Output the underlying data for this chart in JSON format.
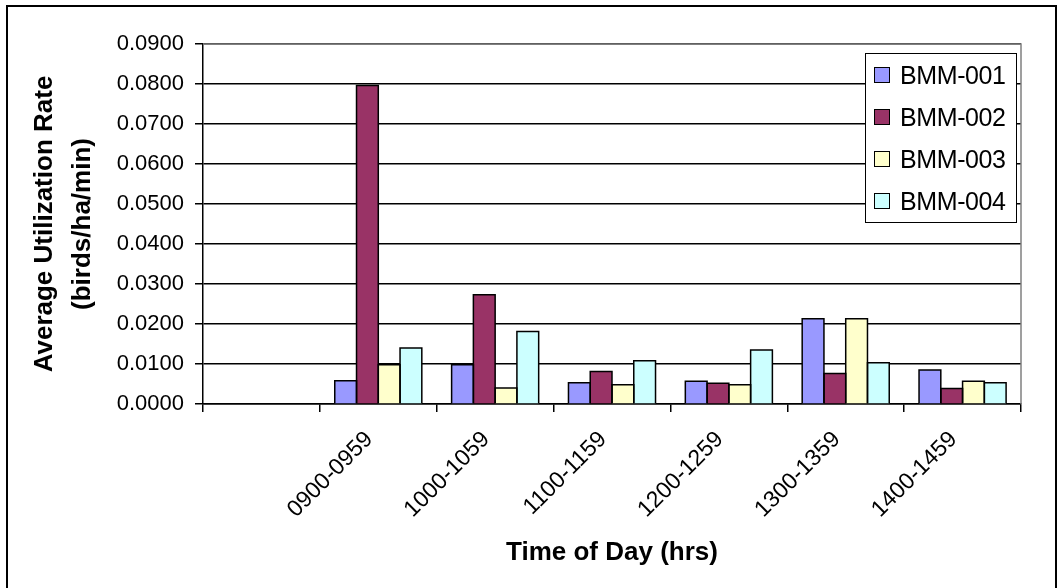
{
  "chart_data": {
    "type": "bar",
    "xlabel": "Time of Day (hrs)",
    "ylabel": "Average Utilization Rate\n(birds/ha/min)",
    "categories": [
      null,
      "0900-0959",
      "1000-1059",
      "1100-1159",
      "1200-1259",
      "1300-1359",
      "1400-1459"
    ],
    "series": [
      {
        "name": "BMM-001",
        "color": "#9999ff",
        "values": [
          null,
          0.0058,
          0.0098,
          0.0053,
          0.0057,
          0.0213,
          0.0085
        ]
      },
      {
        "name": "BMM-002",
        "color": "#993366",
        "values": [
          null,
          0.0796,
          0.0273,
          0.0081,
          0.0052,
          0.0076,
          0.0039
        ]
      },
      {
        "name": "BMM-003",
        "color": "#ffffcc",
        "values": [
          null,
          0.0098,
          0.004,
          0.0048,
          0.0048,
          0.0213,
          0.0057
        ]
      },
      {
        "name": "BMM-004",
        "color": "#ccffff",
        "values": [
          null,
          0.014,
          0.0181,
          0.0108,
          0.0135,
          0.0103,
          0.0053
        ]
      }
    ],
    "ylim": [
      0,
      0.09
    ],
    "yticks": [
      {
        "value": 0,
        "label": "0.0000"
      },
      {
        "value": 0.01,
        "label": "0.0100"
      },
      {
        "value": 0.02,
        "label": "0.0200"
      },
      {
        "value": 0.03,
        "label": "0.0300"
      },
      {
        "value": 0.04,
        "label": "0.0400"
      },
      {
        "value": 0.05,
        "label": "0.0500"
      },
      {
        "value": 0.06,
        "label": "0.0600"
      },
      {
        "value": 0.07,
        "label": "0.0700"
      },
      {
        "value": 0.08,
        "label": "0.0800"
      },
      {
        "value": 0.09,
        "label": "0.0900"
      }
    ],
    "grid": "y",
    "legend": "top right"
  }
}
